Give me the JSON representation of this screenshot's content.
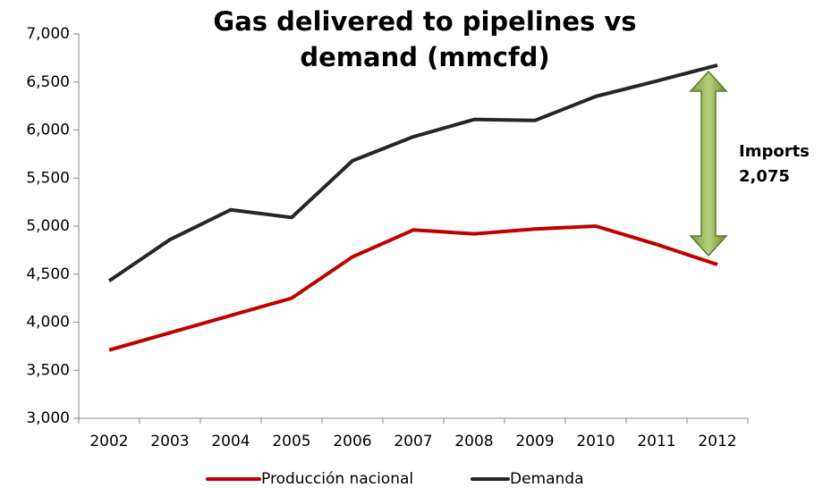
{
  "chart_data": {
    "type": "line",
    "title": "Gas delivered to pipelines vs demand (mmcfd)",
    "categories": [
      "2002",
      "2003",
      "2004",
      "2005",
      "2006",
      "2007",
      "2008",
      "2009",
      "2010",
      "2011",
      "2012"
    ],
    "series": [
      {
        "name": "Producción nacional",
        "color": "#c00000",
        "values": [
          3710,
          3890,
          4070,
          4250,
          4680,
          4960,
          4920,
          4970,
          5000,
          4810,
          4600
        ]
      },
      {
        "name": "Demanda",
        "color": "#262626",
        "values": [
          4430,
          4860,
          5170,
          5090,
          5680,
          5930,
          6110,
          6100,
          6350,
          6510,
          6675
        ]
      }
    ],
    "ylim": [
      3000,
      7000
    ],
    "yticks": [
      {
        "value": 3000,
        "label": "3,000"
      },
      {
        "value": 3500,
        "label": "3,500"
      },
      {
        "value": 4000,
        "label": "4,000"
      },
      {
        "value": 4500,
        "label": "4,500"
      },
      {
        "value": 5000,
        "label": "5,000"
      },
      {
        "value": 5500,
        "label": "5,500"
      },
      {
        "value": 6000,
        "label": "6,000"
      },
      {
        "value": 6500,
        "label": "6,500"
      },
      {
        "value": 7000,
        "label": "7,000"
      }
    ],
    "grid": false,
    "legend": "bottom",
    "annotations": [
      "Imports",
      "2,075"
    ]
  }
}
